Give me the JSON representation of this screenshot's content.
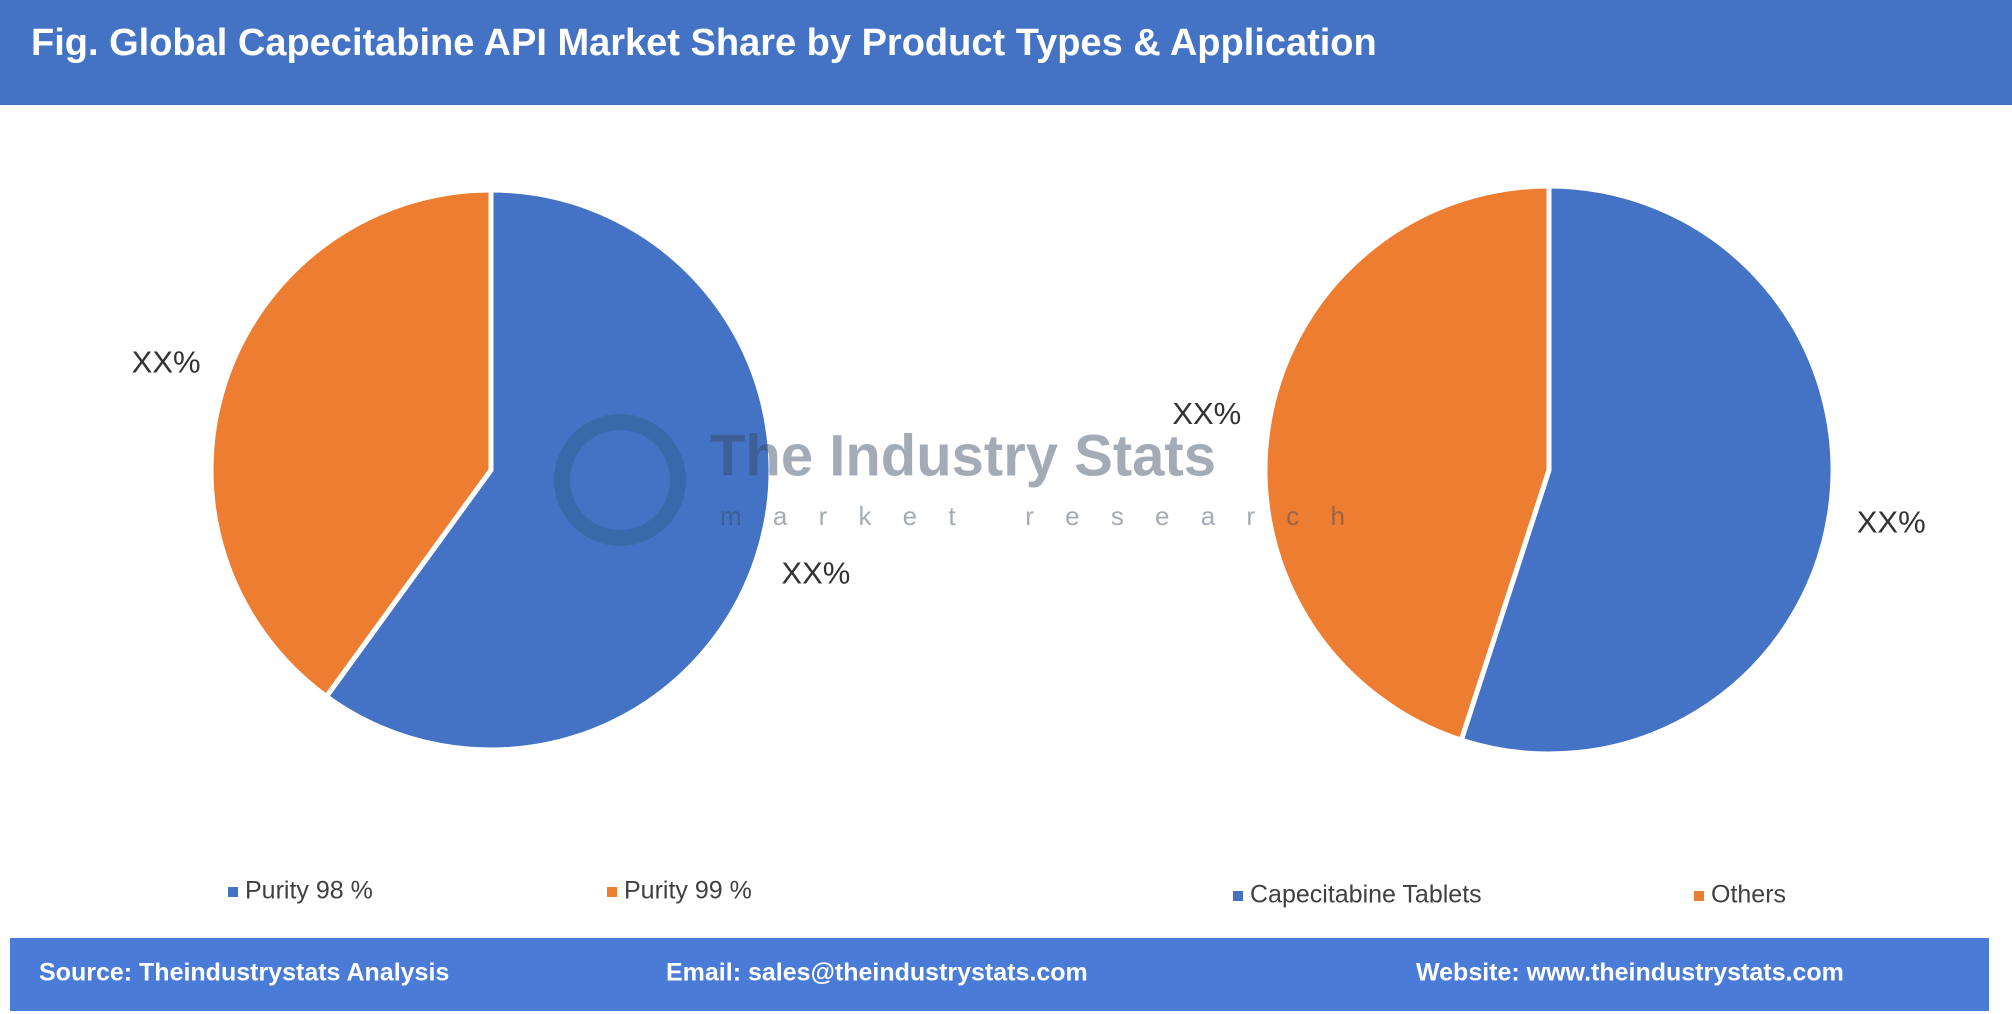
{
  "title": "Fig. Global Capecitabine API Market Share by Product Types & Application",
  "watermark": {
    "name": "The Industry Stats",
    "tagline": "m a r k e t   r e s e a r c h"
  },
  "chart_data": [
    {
      "type": "pie",
      "categories": [
        "Purity 98 %",
        "Purity 99 %"
      ],
      "values": [
        60,
        40
      ],
      "value_labels": [
        "XX%",
        "XX%"
      ],
      "colors": [
        "#4472c4",
        "#ed7d31"
      ]
    },
    {
      "type": "pie",
      "categories": [
        "Capecitabine Tablets",
        "Others"
      ],
      "values": [
        55,
        45
      ],
      "value_labels": [
        "XX%",
        "XX%"
      ],
      "colors": [
        "#4472c4",
        "#ed7d31"
      ]
    }
  ],
  "footer": {
    "source": "Source: Theindustrystats Analysis",
    "email": "Email: sales@theindustrystats.com",
    "website": "Website: www.theindustrystats.com"
  }
}
